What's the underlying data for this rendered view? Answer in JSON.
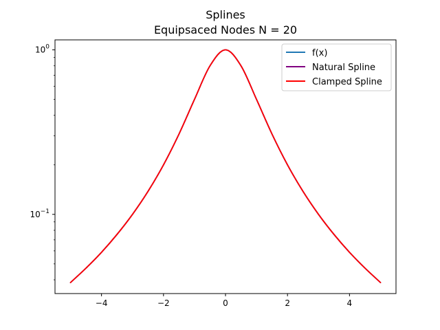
{
  "chart_data": {
    "type": "line",
    "title": "Splines",
    "subtitle": "Equipsaced Nodes N = 20",
    "xlabel": "",
    "ylabel": "",
    "xlim": [
      -5.5,
      5.5
    ],
    "ylim": [
      0.033,
      1.15
    ],
    "yscale": "log",
    "grid": false,
    "legend_position": "top-right",
    "x_ticks": [
      {
        "value": -4,
        "label": "−4"
      },
      {
        "value": -2,
        "label": "−2"
      },
      {
        "value": 0,
        "label": "0"
      },
      {
        "value": 2,
        "label": "2"
      },
      {
        "value": 4,
        "label": "4"
      }
    ],
    "y_ticks": [
      {
        "value": 1,
        "base": "10",
        "exp": "0"
      },
      {
        "value": 0.1,
        "base": "10",
        "exp": "−1"
      }
    ],
    "x": [
      -5,
      -4.5,
      -4,
      -3.5,
      -3,
      -2.5,
      -2,
      -1.5,
      -1,
      -0.5,
      0,
      0.5,
      1,
      1.5,
      2,
      2.5,
      3,
      3.5,
      4,
      4.5,
      5
    ],
    "series": [
      {
        "name": "f(x)",
        "color": "#1f77b4",
        "values": [
          0.0385,
          0.0471,
          0.0588,
          0.0755,
          0.1,
          0.1379,
          0.2,
          0.3077,
          0.5,
          0.8,
          1.0,
          0.8,
          0.5,
          0.3077,
          0.2,
          0.1379,
          0.1,
          0.0755,
          0.0588,
          0.0471,
          0.0385
        ]
      },
      {
        "name": "Natural Spline",
        "color": "#800080",
        "values": [
          0.0385,
          0.0471,
          0.0588,
          0.0755,
          0.1,
          0.1379,
          0.2,
          0.3077,
          0.5,
          0.8,
          1.0,
          0.8,
          0.5,
          0.3077,
          0.2,
          0.1379,
          0.1,
          0.0755,
          0.0588,
          0.0471,
          0.0385
        ]
      },
      {
        "name": "Clamped Spline",
        "color": "#ff0000",
        "values": [
          0.0385,
          0.0471,
          0.0588,
          0.0755,
          0.1,
          0.1379,
          0.2,
          0.3077,
          0.5,
          0.8,
          1.0,
          0.8,
          0.5,
          0.3077,
          0.2,
          0.1379,
          0.1,
          0.0755,
          0.0588,
          0.0471,
          0.0385
        ]
      }
    ]
  }
}
